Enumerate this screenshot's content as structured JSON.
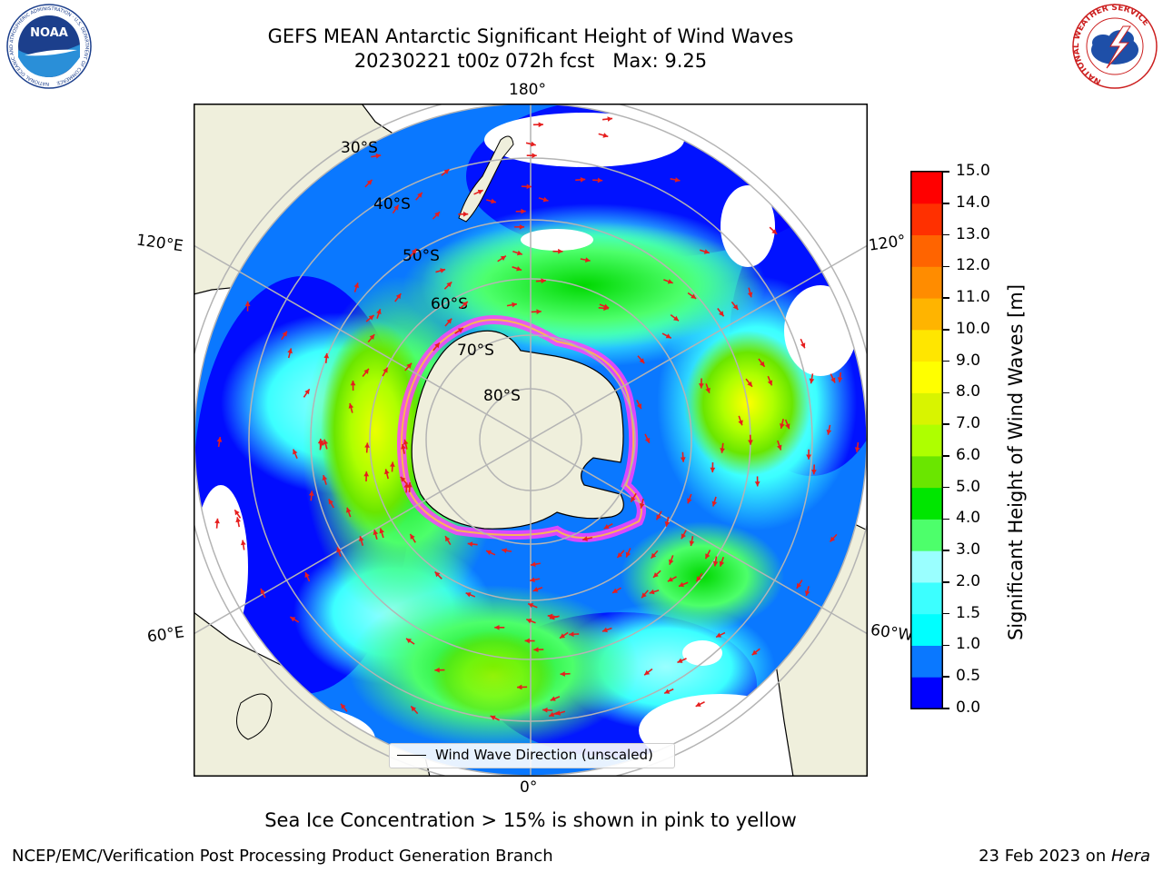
{
  "title": {
    "line1": "GEFS MEAN Antarctic Significant Height of Wind Waves",
    "line2": "20230221 t00z 072h fcst   Max: 9.25"
  },
  "map": {
    "projection": "south-polar-stereographic",
    "longitude_labels": {
      "top": "180°",
      "upper_left": "120°E",
      "upper_right": "120°",
      "lower_left": "60°E",
      "lower_right": "60°W",
      "bottom": "0°"
    },
    "latitude_labels": [
      "30°S",
      "40°S",
      "50°S",
      "60°S",
      "70°S",
      "80°S"
    ],
    "colors": {
      "land": "#efefdc",
      "coast": "#000000",
      "grid": "#b4b4b4",
      "arrow": "#e61e1e",
      "sea_ice": "#ff40ff"
    }
  },
  "legend": {
    "label": "Wind Wave Direction (unscaled)"
  },
  "colorbar": {
    "label": "Significant Height of Wind Waves [m]",
    "ticks": [
      "0.0",
      "0.5",
      "1.0",
      "1.5",
      "2.0",
      "3.0",
      "4.0",
      "5.0",
      "6.0",
      "7.0",
      "8.0",
      "9.0",
      "10.0",
      "11.0",
      "12.0",
      "13.0",
      "14.0",
      "15.0"
    ],
    "colors": [
      "#0000ff",
      "#0a78ff",
      "#00ffff",
      "#3cffff",
      "#9affff",
      "#4dff6b",
      "#00e600",
      "#6ae600",
      "#aeff00",
      "#d8f400",
      "#ffff00",
      "#ffe600",
      "#ffb400",
      "#ff8c00",
      "#ff6400",
      "#ff3000",
      "#ff0000"
    ]
  },
  "note": "Sea Ice Concentration > 15% is shown in pink to yellow",
  "footer": {
    "left": "NCEP/EMC/Verification Post Processing Product Generation Branch",
    "right_prefix": "23 Feb 2023 on ",
    "right_machine": "Hera"
  },
  "logos": {
    "left": "NOAA",
    "left_ring": "NATIONAL OCEANIC AND ATMOSPHERIC ADMINISTRATION · U.S. DEPARTMENT OF COMMERCE",
    "right_ring": "NATIONAL WEATHER SERVICE"
  }
}
